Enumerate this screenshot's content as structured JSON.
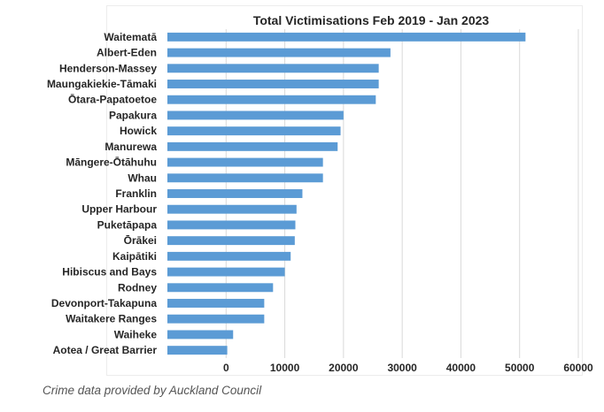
{
  "caption": "Crime data provided by Auckland Council",
  "colors": {
    "bar": "#5b9bd5",
    "grid": "#d9d9d9",
    "text": "#262626"
  },
  "chart_data": {
    "type": "bar",
    "orientation": "horizontal",
    "title": "Total Victimisations Feb 2019 - Jan 2023",
    "xlabel": "",
    "ylabel": "",
    "xlim": [
      -10000,
      60000
    ],
    "x_ticks": [
      0,
      10000,
      20000,
      30000,
      40000,
      50000,
      60000
    ],
    "x_tick_labels": [
      "0",
      "10000",
      "20000",
      "30000",
      "40000",
      "50000",
      "60000"
    ],
    "grid": true,
    "legend": "none",
    "categories": [
      "Waitematā",
      "Albert-Eden",
      "Henderson-Massey",
      "Maungakiekie-Tāmaki",
      "Ōtara-Papatoetoe",
      "Papakura",
      "Howick",
      "Manurewa",
      "Māngere-Ōtāhuhu",
      "Whau",
      "Franklin",
      "Upper Harbour",
      "Puketāpapa",
      "Ōrākei",
      "Kaipātiki",
      "Hibiscus and Bays",
      "Rodney",
      "Devonport-Takapuna",
      "Waitakere Ranges",
      "Waiheke",
      "Aotea / Great Barrier"
    ],
    "values": [
      51000,
      28000,
      26000,
      26000,
      25500,
      20000,
      19500,
      19000,
      16500,
      16500,
      13000,
      12000,
      11800,
      11700,
      11000,
      10000,
      8000,
      6500,
      6500,
      1200,
      200
    ]
  }
}
